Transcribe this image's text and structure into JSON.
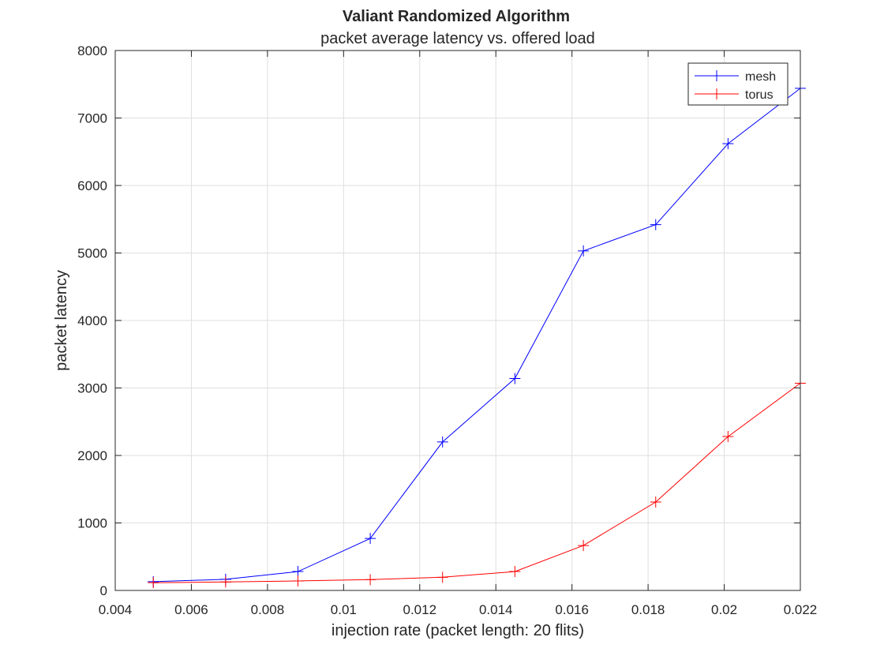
{
  "chart_data": {
    "type": "line",
    "title": "Valiant Randomized Algorithm",
    "subtitle": "packet average latency vs. offered load",
    "xlabel": "injection rate (packet length: 20 flits)",
    "ylabel": "packet latency",
    "xlim": [
      0.004,
      0.022
    ],
    "ylim": [
      0,
      8000
    ],
    "x_ticks": [
      0.004,
      0.006,
      0.008,
      0.01,
      0.012,
      0.014,
      0.016,
      0.018,
      0.02,
      0.022
    ],
    "x_tick_labels": [
      "0.004",
      "0.006",
      "0.008",
      "0.01",
      "0.012",
      "0.014",
      "0.016",
      "0.018",
      "0.02",
      "0.022"
    ],
    "y_ticks": [
      0,
      1000,
      2000,
      3000,
      4000,
      5000,
      6000,
      7000,
      8000
    ],
    "y_tick_labels": [
      "0",
      "1000",
      "2000",
      "3000",
      "4000",
      "5000",
      "6000",
      "7000",
      "8000"
    ],
    "grid": true,
    "legend_position": "top-right",
    "x": [
      0.005,
      0.0069,
      0.0088,
      0.0107,
      0.0126,
      0.0145,
      0.0163,
      0.0182,
      0.0201,
      0.022
    ],
    "series": [
      {
        "name": "mesh",
        "color": "#0000ff",
        "marker": "plus",
        "values": [
          130,
          165,
          280,
          770,
          2200,
          3140,
          5030,
          5420,
          6620,
          7440
        ]
      },
      {
        "name": "torus",
        "color": "#ff0000",
        "marker": "plus",
        "values": [
          115,
          125,
          140,
          160,
          195,
          280,
          665,
          1310,
          2280,
          3070
        ]
      }
    ]
  }
}
